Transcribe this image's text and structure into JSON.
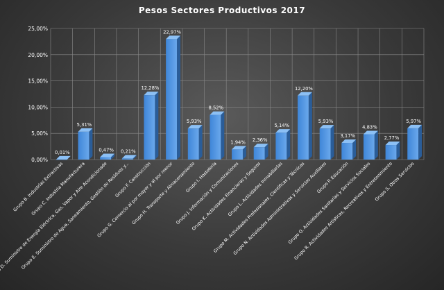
{
  "chart_data": {
    "type": "bar",
    "title": "Pesos  Sectores  Productivos  2017",
    "xlabel": "",
    "ylabel": "",
    "ylim": [
      0,
      25
    ],
    "yticks": [
      "0,00%",
      "5,00%",
      "10,00%",
      "15,00%",
      "20,00%",
      "25,00%"
    ],
    "grid": true,
    "legend": "none",
    "categories": [
      "Grupo B. Industrias Extractivas",
      "Grupo C. Industria Manufacturera",
      "Grupo D. Suministro de Energía Eléctrica, Gas, Vapor y Aire Acondicionado",
      "Grupo E. Suministro de Agua, Saneamiento, Gestión de Residuos y...",
      "Grupo F. Construcción",
      "Grupo G. Comercio al por mayor y al por menor",
      "Grupo H. Transporte y Almacenamiento",
      "Grupo I. Hostelería",
      "Grupo J. Información y Comunicaciones",
      "Grupo K. Actividades Financieras y Seguros",
      "Grupo L. Actividades Inmobiliarias",
      "Grupo M. Actividades Profesionales, Científicas y Técnicas",
      "Grupo N. Actividades Administrativas y Servicios Auxiliares",
      "Grupo P. Educación",
      "Grupo Q. Actividades Sanitarias y Servicios Sociales",
      "Grupo R. Actividades Artísticas, Recreativas y Entretenimiento",
      "Grupo S. Otros Servicios"
    ],
    "values": [
      0.01,
      5.31,
      0.47,
      0.21,
      12.28,
      22.97,
      5.93,
      8.52,
      1.94,
      2.36,
      5.14,
      12.2,
      5.93,
      3.17,
      4.83,
      2.77,
      5.97
    ],
    "data_labels": [
      "0,01%",
      "5,31%",
      "0,47%",
      "0,21%",
      "12,28%",
      "22,97%",
      "5,93%",
      "8,52%",
      "1,94%",
      "2,36%",
      "5,14%",
      "12,20%",
      "5,93%",
      "3,17%",
      "4,83%",
      "2,77%",
      "5,97%"
    ],
    "colors": {
      "bar_front": "#3f86d8",
      "bar_front_light": "#6aa8ec",
      "bar_side": "#2a5d99",
      "bar_top": "#8cc0f5"
    }
  }
}
